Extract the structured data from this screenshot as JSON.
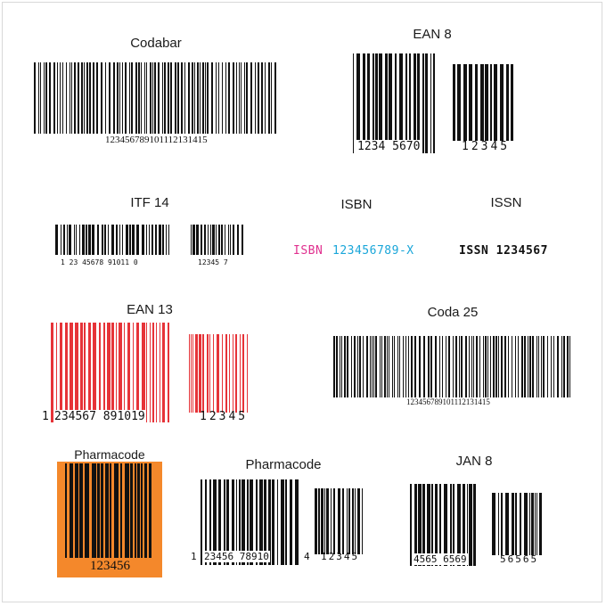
{
  "colors": {
    "black": "#111111",
    "red": "#e63338",
    "magenta": "#e0308f",
    "cyan": "#1aa6d9",
    "orange": "#f4882b"
  },
  "codabar": {
    "title": "Codabar",
    "digits": "123456789101112131415"
  },
  "ean8": {
    "title": "EAN 8",
    "main_digits": "1234  5670",
    "addon_digits": "12345"
  },
  "itf14": {
    "title": "ITF 14",
    "main_digits": "1  23  45678  91011  0",
    "addon_digits": "12345  7"
  },
  "isbn": {
    "title": "ISBN",
    "prefix": "ISBN",
    "number": "123456789-X"
  },
  "issn": {
    "title": "ISSN",
    "text": "ISSN 1234567"
  },
  "ean13": {
    "title": "EAN 13",
    "first_digit": "1",
    "main_digits": "234567  891019",
    "addon_digits": "12345"
  },
  "coda25": {
    "title": "Coda 25",
    "digits": "123456789101112131415"
  },
  "pharmacode_orange": {
    "title": "Pharmacode",
    "digits": "123456"
  },
  "pharmacode": {
    "title": "Pharmacode",
    "first_digit": "1",
    "main_digits": "23456  78910",
    "check_digit": "4",
    "addon_digits": "12345"
  },
  "jan8": {
    "title": "JAN 8",
    "main_digits": "4565  6569",
    "addon_digits": "56565"
  }
}
